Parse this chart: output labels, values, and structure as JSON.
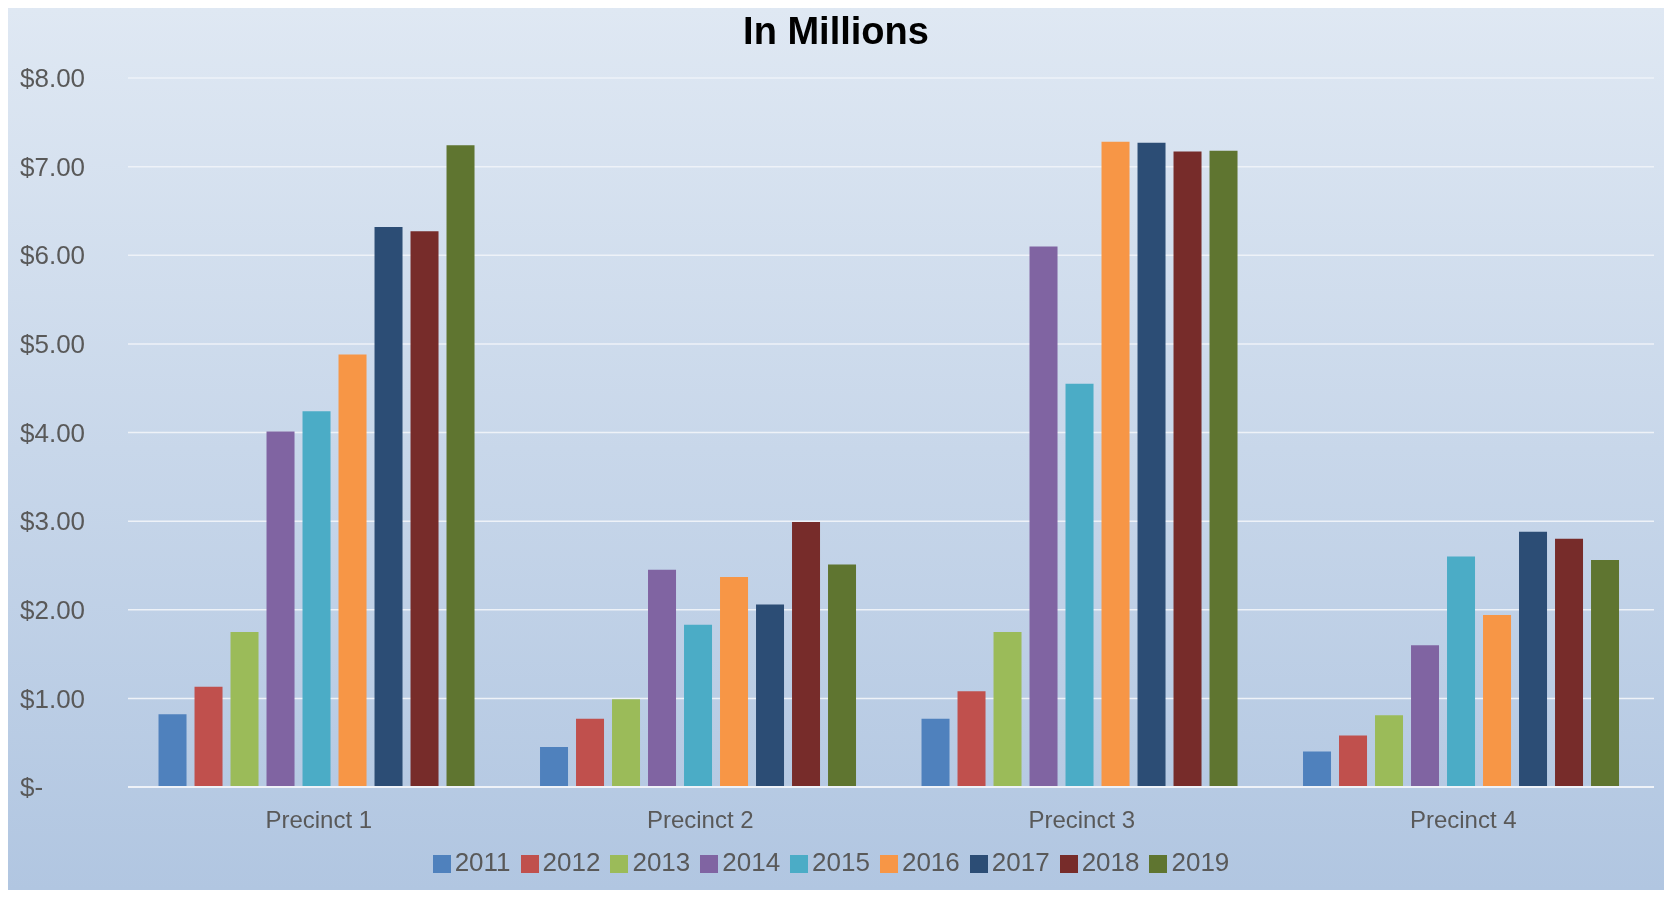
{
  "chart_data": {
    "type": "bar",
    "title": "In Millions",
    "categories": [
      "Precinct 1",
      "Precinct 2",
      "Precinct 3",
      "Precinct 4"
    ],
    "series": [
      {
        "name": "2011",
        "color": "#4f81bd",
        "values": [
          0.82,
          0.45,
          0.77,
          0.4
        ]
      },
      {
        "name": "2012",
        "color": "#c0504d",
        "values": [
          1.13,
          0.77,
          1.08,
          0.58
        ]
      },
      {
        "name": "2013",
        "color": "#9bbb59",
        "values": [
          1.75,
          0.99,
          1.75,
          0.81
        ]
      },
      {
        "name": "2014",
        "color": "#8064a2",
        "values": [
          4.01,
          2.45,
          6.1,
          1.6
        ]
      },
      {
        "name": "2015",
        "color": "#4bacc6",
        "values": [
          4.24,
          1.83,
          4.55,
          2.6
        ]
      },
      {
        "name": "2016",
        "color": "#f79646",
        "values": [
          4.88,
          2.37,
          7.28,
          1.94
        ]
      },
      {
        "name": "2017",
        "color": "#2c4d75",
        "values": [
          6.32,
          2.06,
          7.27,
          2.88
        ]
      },
      {
        "name": "2018",
        "color": "#772c2a",
        "values": [
          6.27,
          2.99,
          7.17,
          2.8
        ]
      },
      {
        "name": "2019",
        "color": "#5f7530",
        "values": [
          7.24,
          2.51,
          7.18,
          2.56
        ]
      }
    ],
    "ylim": [
      0,
      8
    ],
    "yticks": [
      {
        "value": 0,
        "label": "$-"
      },
      {
        "value": 1,
        "label": "$1.00"
      },
      {
        "value": 2,
        "label": "$2.00"
      },
      {
        "value": 3,
        "label": "$3.00"
      },
      {
        "value": 4,
        "label": "$4.00"
      },
      {
        "value": 5,
        "label": "$5.00"
      },
      {
        "value": 6,
        "label": "$6.00"
      },
      {
        "value": 7,
        "label": "$7.00"
      },
      {
        "value": 8,
        "label": "$8.00"
      }
    ],
    "grid": "y",
    "legend": "bottom"
  }
}
